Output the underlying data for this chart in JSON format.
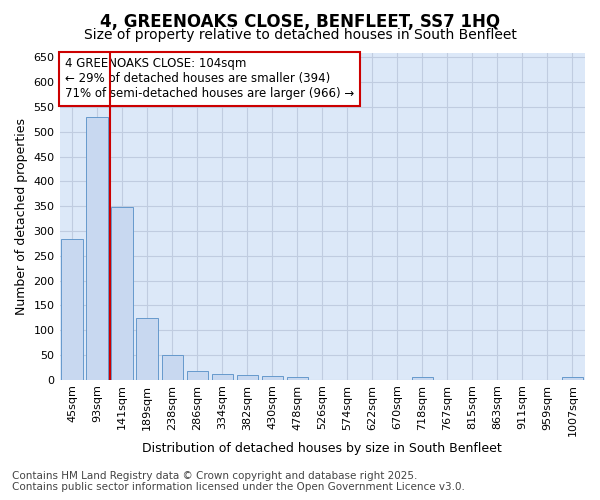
{
  "title": "4, GREENOAKS CLOSE, BENFLEET, SS7 1HQ",
  "subtitle": "Size of property relative to detached houses in South Benfleet",
  "xlabel": "Distribution of detached houses by size in South Benfleet",
  "ylabel": "Number of detached properties",
  "categories": [
    "45sqm",
    "93sqm",
    "141sqm",
    "189sqm",
    "238sqm",
    "286sqm",
    "334sqm",
    "382sqm",
    "430sqm",
    "478sqm",
    "526sqm",
    "574sqm",
    "622sqm",
    "670sqm",
    "718sqm",
    "767sqm",
    "815sqm",
    "863sqm",
    "911sqm",
    "959sqm",
    "1007sqm"
  ],
  "values": [
    283,
    530,
    348,
    125,
    50,
    18,
    12,
    10,
    8,
    5,
    0,
    0,
    0,
    0,
    6,
    0,
    0,
    0,
    0,
    0,
    5
  ],
  "bar_color": "#c8d8f0",
  "bar_edge_color": "#6699cc",
  "ref_line_color": "#cc0000",
  "ref_line_x": 1.5,
  "annotation_text": "4 GREENOAKS CLOSE: 104sqm\n← 29% of detached houses are smaller (394)\n71% of semi-detached houses are larger (966) →",
  "annotation_box_facecolor": "#ffffff",
  "annotation_box_edgecolor": "#cc0000",
  "plot_bg_color": "#dce8f8",
  "fig_bg_color": "#ffffff",
  "grid_color": "#c0cce0",
  "ylim": [
    0,
    660
  ],
  "yticks": [
    0,
    50,
    100,
    150,
    200,
    250,
    300,
    350,
    400,
    450,
    500,
    550,
    600,
    650
  ],
  "title_fontsize": 12,
  "subtitle_fontsize": 10,
  "tick_fontsize": 8,
  "axis_label_fontsize": 9,
  "annotation_fontsize": 8.5,
  "footer_fontsize": 7.5,
  "footer_line1": "Contains HM Land Registry data © Crown copyright and database right 2025.",
  "footer_line2": "Contains public sector information licensed under the Open Government Licence v3.0."
}
